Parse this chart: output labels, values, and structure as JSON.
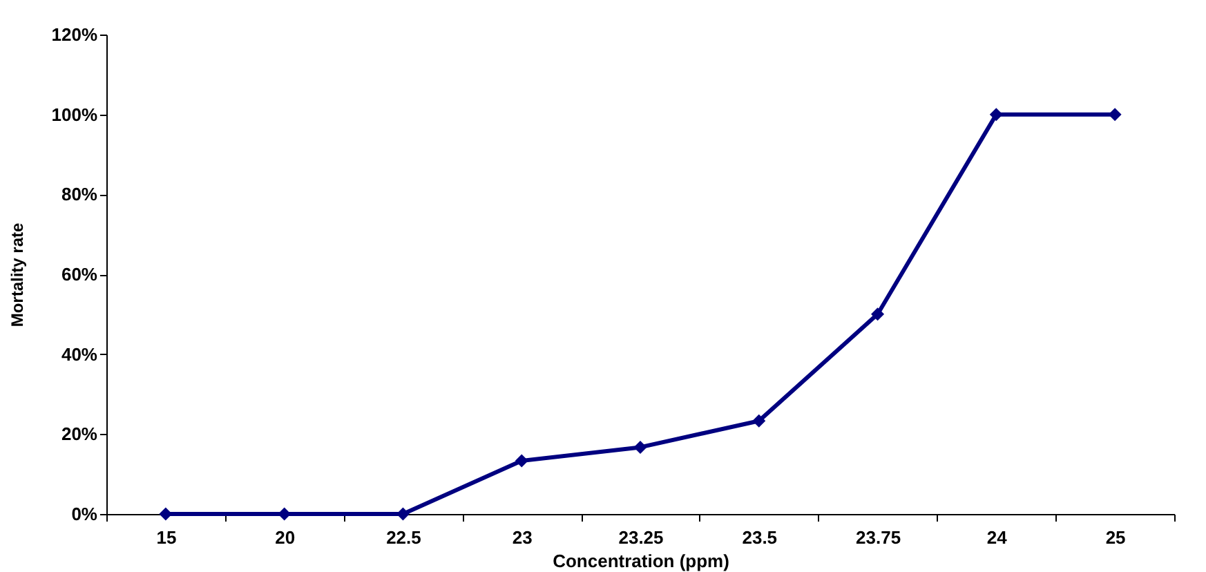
{
  "chart_data": {
    "type": "line",
    "xlabel": "Concentration (ppm)",
    "ylabel": "Mortality rate",
    "categories": [
      "15",
      "20",
      "22.5",
      "23",
      "23.25",
      "23.5",
      "23.75",
      "24",
      "25"
    ],
    "series": [
      {
        "color": "#000080",
        "values": [
          0,
          0,
          0,
          13.3,
          16.7,
          23.3,
          50,
          100,
          100
        ]
      }
    ],
    "ylim": [
      0,
      120
    ],
    "yticks": [
      {
        "value": 0,
        "label": "0%"
      },
      {
        "value": 20,
        "label": "20%"
      },
      {
        "value": 40,
        "label": "40%"
      },
      {
        "value": 60,
        "label": "60%"
      },
      {
        "value": 80,
        "label": "80%"
      },
      {
        "value": 100,
        "label": "100%"
      },
      {
        "value": 120,
        "label": "120%"
      }
    ],
    "grid": false,
    "legend": false,
    "marker": "diamond",
    "line_style": "solid"
  }
}
